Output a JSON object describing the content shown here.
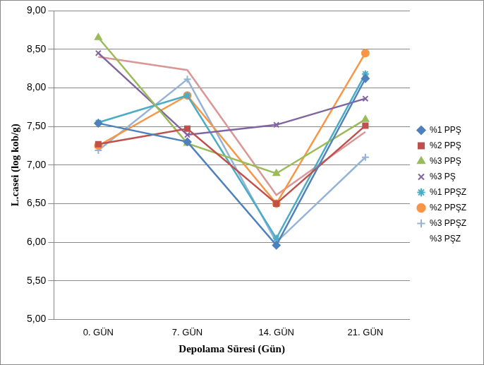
{
  "chart_data": {
    "type": "line",
    "x_label": "Depolama Süresi (Gün)",
    "y_label": "L.casei (log kob/g)",
    "categories": [
      "0. GÜN",
      "7. GÜN",
      "14. GÜN",
      "21. GÜN"
    ],
    "ylim": [
      5,
      9
    ],
    "yticks": [
      {
        "value": 5,
        "label": "5,00"
      },
      {
        "value": 5.5,
        "label": "5,50"
      },
      {
        "value": 6,
        "label": "6,00"
      },
      {
        "value": 6.5,
        "label": "6,50"
      },
      {
        "value": 7,
        "label": "7,00"
      },
      {
        "value": 7.5,
        "label": "7,50"
      },
      {
        "value": 8,
        "label": "8,00"
      },
      {
        "value": 8.5,
        "label": "8,50"
      },
      {
        "value": 9,
        "label": "9,00"
      }
    ],
    "grid": true,
    "legend": "right",
    "series": [
      {
        "name": "%1 PPŞ",
        "color": "#4F81BD",
        "marker": "diamond",
        "values": [
          7.54,
          7.3,
          5.96,
          8.12
        ]
      },
      {
        "name": "%2 PPŞ",
        "color": "#C0504D",
        "marker": "square",
        "values": [
          7.27,
          7.47,
          6.5,
          7.51
        ]
      },
      {
        "name": "%3 PPŞ",
        "color": "#9BBB59",
        "marker": "triangle",
        "values": [
          8.65,
          7.28,
          6.89,
          7.59
        ]
      },
      {
        "name": "%3 PŞ",
        "color": "#8064A2",
        "marker": "x",
        "values": [
          8.45,
          7.39,
          7.52,
          7.86
        ]
      },
      {
        "name": "%1 PPŞZ",
        "color": "#4BACC6",
        "marker": "star",
        "values": [
          7.55,
          7.9,
          6.05,
          8.18
        ]
      },
      {
        "name": "%2 PPŞZ",
        "color": "#F79646",
        "marker": "circle",
        "values": [
          7.25,
          7.9,
          6.5,
          8.45
        ]
      },
      {
        "name": "%3 PPŞZ",
        "color": "#95B3D7",
        "marker": "plus",
        "values": [
          7.19,
          8.11,
          6.0,
          7.1
        ]
      },
      {
        "name": "%3 PŞZ",
        "color": "#D99795",
        "marker": "none",
        "values": [
          8.4,
          8.23,
          6.61,
          7.43
        ]
      }
    ]
  }
}
